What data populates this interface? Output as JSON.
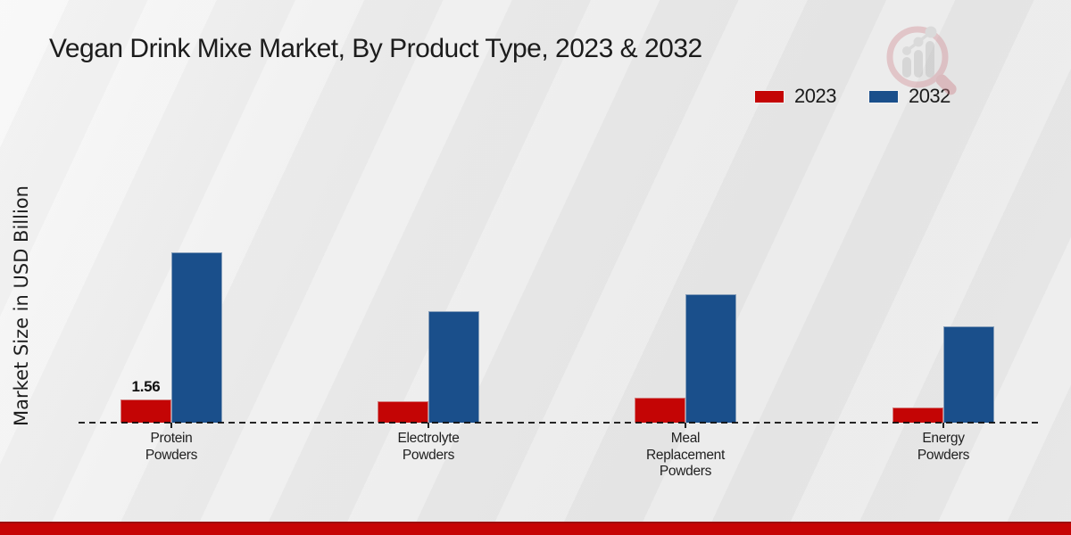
{
  "title": "Vegan Drink Mixe Market, By Product Type, 2023 & 2032",
  "y_axis_label": "Market Size in USD Billion",
  "legend": {
    "position": "top-right",
    "items": [
      {
        "label": "2023",
        "color": "#c40505"
      },
      {
        "label": "2032",
        "color": "#1a4f8b"
      }
    ]
  },
  "watermark_icon": "magnifier-growth-chart-logo",
  "footer": {
    "bar_color": "#c60505"
  },
  "chart_data": {
    "type": "bar",
    "title": "Vegan Drink Mixe Market, By Product Type, 2023 & 2032",
    "xlabel": "",
    "ylabel": "Market Size in USD Billion",
    "ylim": [
      0,
      13
    ],
    "grid": false,
    "baseline_style": "dashed",
    "legend_position": "top-right",
    "categories": [
      "Protein Powders",
      "Electrolyte Powders",
      "Meal Replacement Powders",
      "Energy Powders"
    ],
    "category_label_lines": [
      [
        "Protein",
        "Powders"
      ],
      [
        "Electrolyte",
        "Powders"
      ],
      [
        "Meal",
        "Replacement",
        "Powders"
      ],
      [
        "Energy",
        "Powders"
      ]
    ],
    "series": [
      {
        "name": "2023",
        "color": "#c40505",
        "values": [
          1.56,
          1.45,
          1.7,
          1.05
        ]
      },
      {
        "name": "2032",
        "color": "#1a4f8b",
        "values": [
          11.65,
          7.6,
          8.75,
          6.55
        ]
      }
    ],
    "annotations": [
      {
        "text": "1.56",
        "series_index": 0,
        "category_index": 0
      }
    ]
  }
}
